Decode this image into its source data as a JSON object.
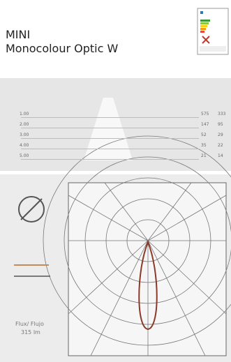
{
  "header": {
    "title": "MINI",
    "subtitle": "Monocolour Optic W"
  },
  "photometry": {
    "rows": [
      {
        "distance": "1.00",
        "c1": "575",
        "c2": "333"
      },
      {
        "distance": "2.00",
        "c1": "147",
        "c2": "95"
      },
      {
        "distance": "3.00",
        "c1": "52",
        "c2": "29"
      },
      {
        "distance": "4.00",
        "c1": "35",
        "c2": "22"
      },
      {
        "distance": "5.00",
        "c1": "21",
        "c2": "14"
      }
    ]
  },
  "flux": {
    "label": "Flux/ Flujo",
    "value": "315 lm"
  }
}
